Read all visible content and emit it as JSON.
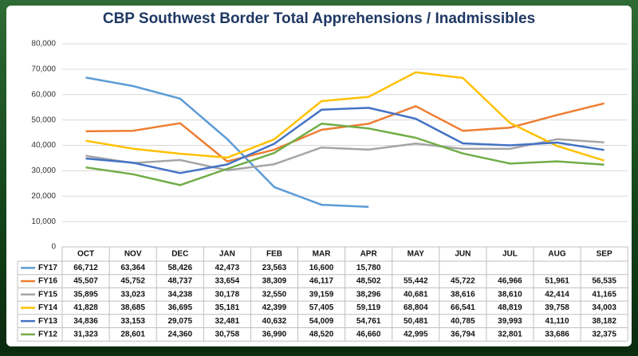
{
  "chart_data": {
    "type": "line",
    "title": "CBP Southwest Border Total Apprehensions / Inadmissibles",
    "categories": [
      "OCT",
      "NOV",
      "DEC",
      "JAN",
      "FEB",
      "MAR",
      "APR",
      "MAY",
      "JUN",
      "JUL",
      "AUG",
      "SEP"
    ],
    "ylim": [
      0,
      80000
    ],
    "yticks": [
      0,
      {
        "value": 10000,
        "label": "10,000"
      },
      {
        "value": 20000,
        "label": "20,000"
      },
      {
        "value": 30000,
        "label": "30,000"
      },
      {
        "value": 40000,
        "label": "40,000"
      },
      {
        "value": 50000,
        "label": "50,000"
      },
      {
        "value": 60000,
        "label": "60,000"
      },
      {
        "value": 70000,
        "label": "70,000"
      },
      {
        "value": 80000,
        "label": "80,000"
      }
    ],
    "grid": true,
    "series": [
      {
        "name": "FY17",
        "color": "#5b9bd5",
        "values": [
          66712,
          63364,
          58426,
          42473,
          23563,
          16600,
          15780,
          null,
          null,
          null,
          null,
          null
        ],
        "value_labels": [
          "66,712",
          "63,364",
          "58,426",
          "42,473",
          "23,563",
          "16,600",
          "15,780",
          null,
          null,
          null,
          null,
          null
        ]
      },
      {
        "name": "FY16",
        "color": "#ed7d31",
        "values": [
          45507,
          45752,
          48737,
          33654,
          38309,
          46117,
          48502,
          55442,
          45722,
          46966,
          51961,
          56535
        ],
        "value_labels": [
          "45,507",
          "45,752",
          "48,737",
          "33,654",
          "38,309",
          "46,117",
          "48,502",
          "55,442",
          "45,722",
          "46,966",
          "51,961",
          "56,535"
        ]
      },
      {
        "name": "FY15",
        "color": "#a5a5a5",
        "values": [
          35895,
          33023,
          34238,
          30178,
          32550,
          39159,
          38296,
          40681,
          38616,
          38610,
          42414,
          41165
        ],
        "value_labels": [
          "35,895",
          "33,023",
          "34,238",
          "30,178",
          "32,550",
          "39,159",
          "38,296",
          "40,681",
          "38,616",
          "38,610",
          "42,414",
          "41,165"
        ]
      },
      {
        "name": "FY14",
        "color": "#ffc000",
        "values": [
          41828,
          38685,
          36695,
          35181,
          42399,
          57405,
          59119,
          68804,
          66541,
          48819,
          39758,
          34003
        ],
        "value_labels": [
          "41,828",
          "38,685",
          "36,695",
          "35,181",
          "42,399",
          "57,405",
          "59,119",
          "68,804",
          "66,541",
          "48,819",
          "39,758",
          "34,003"
        ]
      },
      {
        "name": "FY13",
        "color": "#4472c4",
        "values": [
          34836,
          33153,
          29075,
          32481,
          40632,
          54009,
          54761,
          50481,
          40785,
          39993,
          41110,
          38182
        ],
        "value_labels": [
          "34,836",
          "33,153",
          "29,075",
          "32,481",
          "40,632",
          "54,009",
          "54,761",
          "50,481",
          "40,785",
          "39,993",
          "41,110",
          "38,182"
        ]
      },
      {
        "name": "FY12",
        "color": "#70ad47",
        "values": [
          31323,
          28601,
          24360,
          30758,
          36990,
          48520,
          46660,
          42995,
          36794,
          32801,
          33686,
          32375
        ],
        "value_labels": [
          "31,323",
          "28,601",
          "24,360",
          "30,758",
          "36,990",
          "48,520",
          "46,660",
          "42,995",
          "36,794",
          "32,801",
          "33,686",
          "32,375"
        ]
      }
    ]
  }
}
